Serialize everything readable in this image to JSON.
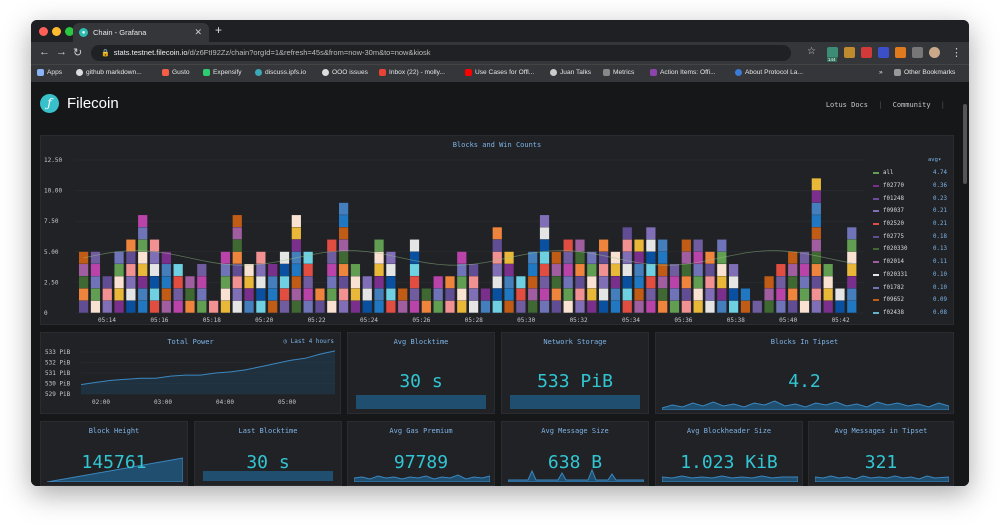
{
  "browser": {
    "tab_title": "Chain - Grafana",
    "url_host": "stats.testnet.filecoin.io",
    "url_path": "/d/z6FtI92Zz/chain?orgId=1&refresh=45s&from=now-30m&to=now&kiosk",
    "bookmarks": [
      "Apps",
      "github markdown...",
      "Gusto",
      "Expensify",
      "discuss.ipfs.io",
      "OOO issues",
      "Inbox (22) - molly...",
      "Use Cases for Offl...",
      "Juan Talks",
      "Metrics",
      "Action Items: Offi...",
      "About Protocol La...",
      "Other Bookmarks"
    ],
    "badge_count": "144"
  },
  "header": {
    "brand": "Filecoin",
    "link1": "Lotus Docs",
    "link2": "Community"
  },
  "colors": {
    "accent": "#32c5d2",
    "title": "#7eb4e8",
    "panel": "#202226"
  },
  "blocks_panel": {
    "title": "Blocks and Win Counts",
    "legend_header": "avg",
    "legend": [
      {
        "name": "all",
        "avg": "4.74",
        "color": "#629e51"
      },
      {
        "name": "f02770",
        "avg": "0.36",
        "color": "#7b2f8c"
      },
      {
        "name": "f01248",
        "avg": "0.23",
        "color": "#6d4c9e"
      },
      {
        "name": "f09037",
        "avg": "0.21",
        "color": "#806eb7"
      },
      {
        "name": "f02520",
        "avg": "0.21",
        "color": "#e24d42"
      },
      {
        "name": "f02775",
        "avg": "0.18",
        "color": "#614d93"
      },
      {
        "name": "f020330",
        "avg": "0.13",
        "color": "#3f6833"
      },
      {
        "name": "f02014",
        "avg": "0.11",
        "color": "#a05da0"
      },
      {
        "name": "f020331",
        "avg": "0.10",
        "color": "#e5e5e5"
      },
      {
        "name": "f01782",
        "avg": "0.10",
        "color": "#6f74b9"
      },
      {
        "name": "f09652",
        "avg": "0.09",
        "color": "#c15c17"
      },
      {
        "name": "f02438",
        "avg": "0.08",
        "color": "#64b0c8"
      }
    ]
  },
  "chart_data": [
    {
      "type": "bar",
      "title": "Blocks and Win Counts",
      "stacked": true,
      "ylim": [
        0,
        12.5
      ],
      "yticks": [
        "0",
        "2.50",
        "5.00",
        "7.50",
        "10.00",
        "12.50"
      ],
      "xticks": [
        "05:14",
        "05:16",
        "05:18",
        "05:20",
        "05:22",
        "05:24",
        "05:26",
        "05:28",
        "05:30",
        "05:32",
        "05:34",
        "05:36",
        "05:38",
        "05:40",
        "05:42"
      ],
      "values": [
        5,
        5,
        3,
        5,
        6,
        8,
        6,
        5,
        4,
        3,
        4,
        1,
        5,
        8,
        4,
        5,
        4,
        5,
        8,
        5,
        2,
        6,
        9,
        4,
        3,
        6,
        5,
        2,
        6,
        2,
        3,
        3,
        5,
        4,
        2,
        7,
        5,
        3,
        5,
        8,
        5,
        6,
        6,
        5,
        6,
        5,
        7,
        6,
        7,
        6,
        4,
        6,
        6,
        5,
        6,
        4,
        2,
        1,
        3,
        4,
        5,
        5,
        11,
        4,
        2,
        7
      ],
      "grid": true
    },
    {
      "type": "line",
      "title": "Total Power",
      "yticks": [
        "533 PiB",
        "532 PiB",
        "531 PiB",
        "530 PiB",
        "529 PiB"
      ],
      "xticks": [
        "02:00",
        "03:00",
        "04:00",
        "05:00"
      ],
      "values": [
        529.9,
        530.1,
        530.3,
        530.4,
        530.5,
        530.5,
        530.7,
        530.8,
        530.8,
        531.0,
        531.1,
        531.3,
        531.6,
        531.9,
        532.2,
        532.4,
        532.8,
        533.1
      ]
    }
  ],
  "panels": {
    "total_power": {
      "title": "Total Power",
      "badge": "Last 4 hours"
    },
    "avg_blocktime": {
      "title": "Avg Blocktime",
      "value": "30 s"
    },
    "network_storage": {
      "title": "Network Storage",
      "value": "533 PiB"
    },
    "blocks_in_tipset": {
      "title": "Blocks In Tipset",
      "value": "4.2"
    },
    "block_height": {
      "title": "Block Height",
      "value": "145761"
    },
    "last_blocktime": {
      "title": "Last Blocktime",
      "value": "30 s"
    },
    "avg_gas_premium": {
      "title": "Avg Gas Premium",
      "value": "97789"
    },
    "avg_message_size": {
      "title": "Avg Message Size",
      "value": "638 B"
    },
    "avg_blockheader_size": {
      "title": "Avg Blockheader Size",
      "value": "1.023 KiB"
    },
    "avg_messages_in_tipset": {
      "title": "Avg Messages in Tipset",
      "value": "321"
    }
  }
}
